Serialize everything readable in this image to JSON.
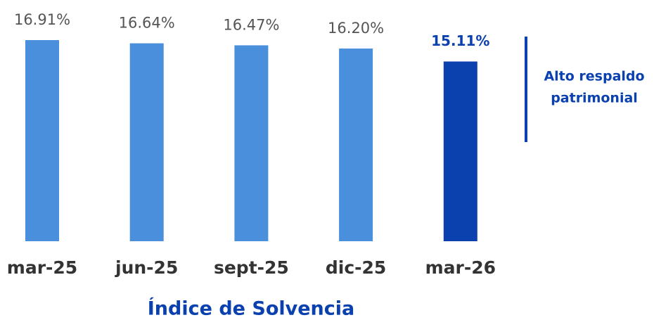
{
  "chart_data": {
    "type": "bar",
    "title": "Índice de Solvencia",
    "categories": [
      "mar-25",
      "jun-25",
      "sept-25",
      "dic-25",
      "mar-26"
    ],
    "values": [
      16.91,
      16.64,
      16.47,
      16.2,
      15.11
    ],
    "value_labels": [
      "16.91%",
      "16.64%",
      "16.47%",
      "16.20%",
      "15.11%"
    ],
    "colors": [
      "#4a8fdc",
      "#4a8fdc",
      "#4a8fdc",
      "#4a8fdc",
      "#0a41ae"
    ],
    "highlight": 4,
    "annotation": [
      "Alto respaldo",
      "patrimonial"
    ]
  }
}
